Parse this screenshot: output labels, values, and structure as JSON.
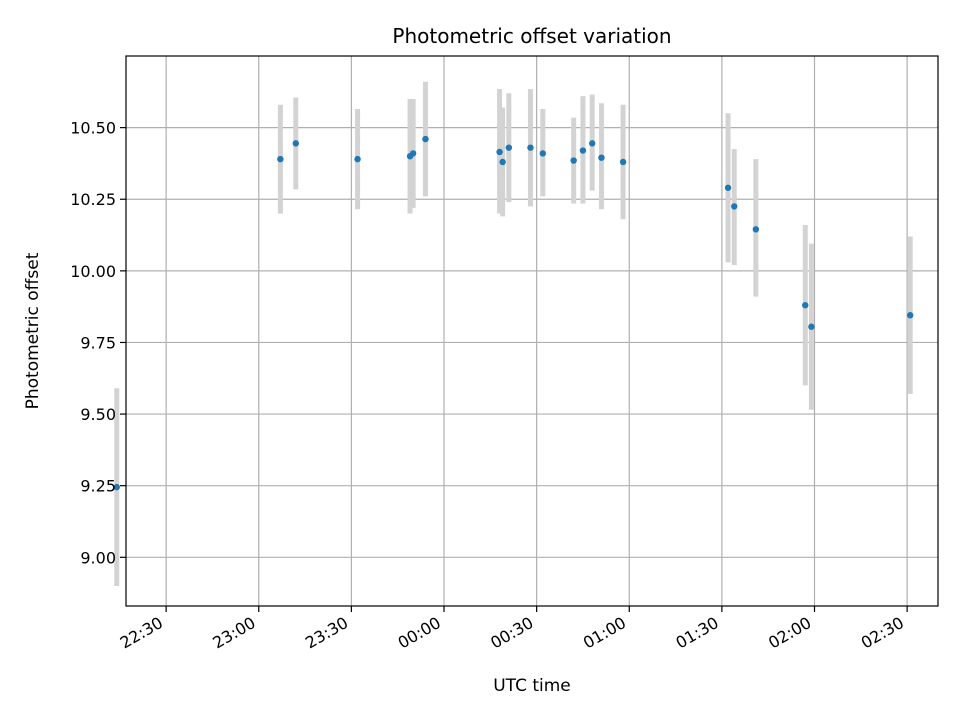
{
  "chart_data": {
    "type": "scatter",
    "title": "Photometric offset variation",
    "xlabel": "UTC time",
    "ylabel": "Photometric offset",
    "grid": true,
    "error_bars": true,
    "colors": {
      "point": "#1f77b4",
      "errorbar": "#d3d3d3",
      "grid": "#b0b0b0"
    },
    "x_ticks": [
      "22:30",
      "23:00",
      "23:30",
      "00:00",
      "00:30",
      "01:00",
      "01:30",
      "02:00",
      "02:30"
    ],
    "y_ticks": [
      "9.00",
      "9.25",
      "9.50",
      "9.75",
      "10.00",
      "10.25",
      "10.50"
    ],
    "ylim": [
      8.83,
      10.75
    ],
    "xlim": [
      "22:17",
      "02:40"
    ],
    "series": [
      {
        "points": [
          {
            "x": "22:14",
            "y": 9.245,
            "y_lower": 8.9,
            "y_upper": 9.59
          },
          {
            "x": "23:07",
            "y": 10.39,
            "y_lower": 10.2,
            "y_upper": 10.58
          },
          {
            "x": "23:12",
            "y": 10.445,
            "y_lower": 10.285,
            "y_upper": 10.605
          },
          {
            "x": "23:32",
            "y": 10.39,
            "y_lower": 10.215,
            "y_upper": 10.565
          },
          {
            "x": "23:49",
            "y": 10.4,
            "y_lower": 10.2,
            "y_upper": 10.6
          },
          {
            "x": "23:50",
            "y": 10.41,
            "y_lower": 10.22,
            "y_upper": 10.6
          },
          {
            "x": "23:54",
            "y": 10.46,
            "y_lower": 10.26,
            "y_upper": 10.66
          },
          {
            "x": "00:18",
            "y": 10.415,
            "y_lower": 10.2,
            "y_upper": 10.635
          },
          {
            "x": "00:19",
            "y": 10.38,
            "y_lower": 10.19,
            "y_upper": 10.57
          },
          {
            "x": "00:21",
            "y": 10.43,
            "y_lower": 10.24,
            "y_upper": 10.62
          },
          {
            "x": "00:28",
            "y": 10.43,
            "y_lower": 10.225,
            "y_upper": 10.635
          },
          {
            "x": "00:32",
            "y": 10.41,
            "y_lower": 10.26,
            "y_upper": 10.565
          },
          {
            "x": "00:42",
            "y": 10.385,
            "y_lower": 10.235,
            "y_upper": 10.535
          },
          {
            "x": "00:45",
            "y": 10.42,
            "y_lower": 10.235,
            "y_upper": 10.61
          },
          {
            "x": "00:48",
            "y": 10.445,
            "y_lower": 10.28,
            "y_upper": 10.615
          },
          {
            "x": "00:51",
            "y": 10.395,
            "y_lower": 10.215,
            "y_upper": 10.585
          },
          {
            "x": "00:58",
            "y": 10.38,
            "y_lower": 10.18,
            "y_upper": 10.58
          },
          {
            "x": "01:32",
            "y": 10.29,
            "y_lower": 10.03,
            "y_upper": 10.55
          },
          {
            "x": "01:34",
            "y": 10.225,
            "y_lower": 10.02,
            "y_upper": 10.425
          },
          {
            "x": "01:41",
            "y": 10.145,
            "y_lower": 9.91,
            "y_upper": 10.39
          },
          {
            "x": "01:57",
            "y": 9.88,
            "y_lower": 9.6,
            "y_upper": 10.16
          },
          {
            "x": "01:59",
            "y": 9.805,
            "y_lower": 9.515,
            "y_upper": 10.095
          },
          {
            "x": "02:31",
            "y": 9.845,
            "y_lower": 9.57,
            "y_upper": 10.12
          }
        ]
      }
    ]
  }
}
